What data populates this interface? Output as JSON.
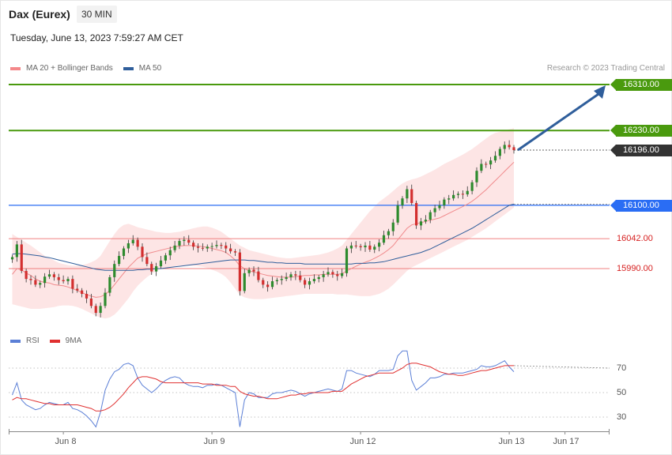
{
  "header": {
    "title": "Dax (Eurex)",
    "interval": "30 MIN",
    "timestamp": "Tuesday, June 13, 2023 7:59:27 AM CET"
  },
  "legend_price": [
    {
      "label": "MA 20 + Bollinger Bands",
      "color": "#f4888a"
    },
    {
      "label": "MA 50",
      "color": "#2f5e9b"
    }
  ],
  "credit": "Research © 2023 Trading Central",
  "legend_rsi": [
    {
      "label": "RSI",
      "color": "#5b7fd6"
    },
    {
      "label": "9MA",
      "color": "#e03030"
    }
  ],
  "colors": {
    "up_candle": "#2e8b2e",
    "down_candle": "#d32f2f",
    "resistance": "#4a9a0e",
    "pivot": "#2a6df4",
    "support": "#f08080",
    "last_price": "#333333",
    "forecast_arrow": "#2f5e9b",
    "bollinger_fill": "#fde0e0"
  },
  "chart_data": {
    "type": "candlestick",
    "title": "Dax (Eurex)",
    "interval": "30 MIN",
    "y_range": [
      15880,
      16330
    ],
    "price_levels": [
      {
        "value": 16310.0,
        "label": "16310.00",
        "kind": "resistance"
      },
      {
        "value": 16230.0,
        "label": "16230.00",
        "kind": "resistance"
      },
      {
        "value": 16196.0,
        "label": "16196.00",
        "kind": "last"
      },
      {
        "value": 16100.0,
        "label": "16100.00",
        "kind": "pivot"
      },
      {
        "value": 16042.0,
        "label": "16042.00",
        "kind": "support"
      },
      {
        "value": 15990.0,
        "label": "15990.00",
        "kind": "support"
      }
    ],
    "x_labels": [
      {
        "label": "Jun 8",
        "index": 11
      },
      {
        "label": "Jun 9",
        "index": 43
      },
      {
        "label": "Jun 12",
        "index": 75
      },
      {
        "label": "Jun 13",
        "index": 107
      },
      {
        "label": "Jun 17",
        "index": 119
      }
    ],
    "closes": [
      16010,
      16032,
      15986,
      15972,
      15970,
      15962,
      15965,
      15976,
      15980,
      15975,
      15970,
      15968,
      15972,
      15955,
      15952,
      15946,
      15938,
      15925,
      15913,
      15925,
      15948,
      15975,
      15998,
      16012,
      16025,
      16034,
      16040,
      16028,
      16010,
      15998,
      15985,
      15994,
      16004,
      16013,
      16022,
      16030,
      16038,
      16040,
      16035,
      16028,
      16026,
      16025,
      16028,
      16029,
      16031,
      16030,
      16025,
      16020,
      16018,
      15951,
      15982,
      15988,
      15985,
      15970,
      15962,
      15958,
      15968,
      15970,
      15972,
      15975,
      15980,
      15978,
      15970,
      15962,
      15968,
      15972,
      15975,
      15980,
      15984,
      15980,
      15977,
      15982,
      16025,
      16030,
      16029,
      16027,
      16030,
      16023,
      16028,
      16035,
      16048,
      16055,
      16070,
      16100,
      16112,
      16128,
      16104,
      16065,
      16072,
      16075,
      16088,
      16095,
      16100,
      16110,
      16112,
      16118,
      16120,
      16119,
      16125,
      16140,
      16160,
      16172,
      16171,
      16178,
      16186,
      16198,
      16205,
      16201,
      16196
    ],
    "ma20": [
      15980,
      15990,
      15988,
      15982,
      15978,
      15972,
      15968,
      15966,
      15965,
      15962,
      15961,
      15960,
      15958,
      15955,
      15952,
      15948,
      15945,
      15942,
      15940,
      15941,
      15945,
      15952,
      15962,
      15972,
      15982,
      15992,
      16000,
      16008,
      16012,
      16016,
      16018,
      16020,
      16022,
      16024,
      16026,
      16028,
      16029,
      16030,
      16030,
      16030,
      16029,
      16028,
      16027,
      16025,
      16023,
      16021,
      16018,
      16012,
      16005,
      15995,
      15990,
      15986,
      15984,
      15982,
      15980,
      15978,
      15977,
      15976,
      15975,
      15975,
      15975,
      15976,
      15977,
      15978,
      15978,
      15979,
      15979,
      15980,
      15980,
      15980,
      15980,
      15981,
      15986,
      15990,
      15994,
      15998,
      16001,
      16004,
      16008,
      16012,
      16017,
      16023,
      16030,
      16040,
      16050,
      16060,
      16066,
      16068,
      16070,
      16072,
      16074,
      16076,
      16078,
      16082,
      16086,
      16090,
      16094,
      16098,
      16102,
      16107,
      16113,
      16120,
      16127,
      16135,
      16143,
      16151,
      16159,
      16167,
      16175
    ],
    "bb_upper": [
      16050,
      16045,
      16040,
      16035,
      16030,
      16024,
      16018,
      16012,
      16008,
      16004,
      16000,
      15998,
      15996,
      15995,
      15995,
      15996,
      15998,
      16001,
      16005,
      16012,
      16025,
      16038,
      16050,
      16060,
      16066,
      16068,
      16065,
      16062,
      16060,
      16058,
      16056,
      16054,
      16053,
      16052,
      16052,
      16053,
      16054,
      16056,
      16058,
      16060,
      16062,
      16063,
      16063,
      16061,
      16058,
      16054,
      16048,
      16042,
      16036,
      16030,
      16026,
      16022,
      16020,
      16018,
      16016,
      16014,
      16012,
      16010,
      16009,
      16008,
      16008,
      16009,
      16010,
      16011,
      16012,
      16013,
      16014,
      16016,
      16018,
      16021,
      16025,
      16030,
      16040,
      16050,
      16060,
      16070,
      16080,
      16090,
      16098,
      16106,
      16112,
      16118,
      16125,
      16132,
      16138,
      16142,
      16145,
      16147,
      16150,
      16154,
      16158,
      16162,
      16167,
      16172,
      16176,
      16180,
      16184,
      16188,
      16193,
      16198,
      16204,
      16210,
      16216,
      16222,
      16226,
      16228,
      16230,
      16232,
      16234
    ],
    "bb_lower": [
      15928,
      15926,
      15924,
      15922,
      15920,
      15920,
      15920,
      15921,
      15922,
      15923,
      15925,
      15926,
      15926,
      15925,
      15923,
      15920,
      15916,
      15912,
      15908,
      15905,
      15903,
      15905,
      15910,
      15918,
      15928,
      15938,
      15950,
      15960,
      15968,
      15975,
      15981,
      15986,
      15989,
      15991,
      15993,
      15994,
      15995,
      15995,
      15995,
      15995,
      15994,
      15993,
      15991,
      15988,
      15985,
      15981,
      15975,
      15966,
      15955,
      15944,
      15940,
      15938,
      15937,
      15937,
      15937,
      15938,
      15939,
      15940,
      15941,
      15942,
      15943,
      15944,
      15945,
      15946,
      15946,
      15946,
      15946,
      15946,
      15946,
      15946,
      15945,
      15945,
      15945,
      15944,
      15943,
      15942,
      15942,
      15942,
      15944,
      15946,
      15950,
      15955,
      15962,
      15970,
      15978,
      15986,
      15992,
      15996,
      16000,
      16004,
      16008,
      16012,
      16016,
      16020,
      16024,
      16028,
      16032,
      16036,
      16040,
      16045,
      16050,
      16055,
      16060,
      16066,
      16072,
      16078,
      16084,
      16090,
      16096
    ],
    "ma50": [
      16015,
      16016,
      16016,
      16015,
      16014,
      16013,
      16012,
      16010,
      16009,
      16007,
      16005,
      16003,
      16001,
      15999,
      15997,
      15995,
      15993,
      15991,
      15989,
      15988,
      15987,
      15987,
      15987,
      15987,
      15987,
      15987,
      15987,
      15988,
      15988,
      15989,
      15989,
      15990,
      15990,
      15991,
      15992,
      15993,
      15994,
      15995,
      15996,
      15997,
      15998,
      15999,
      16000,
      16001,
      16002,
      16003,
      16004,
      16005,
      16005,
      16005,
      16005,
      16004,
      16004,
      16003,
      16002,
      16001,
      16001,
      16000,
      16000,
      15999,
      15999,
      15999,
      15999,
      15998,
      15998,
      15998,
      15998,
      15998,
      15998,
      15998,
      15998,
      15998,
      15998,
      15998,
      15999,
      15999,
      15999,
      16000,
      16000,
      16001,
      16002,
      16004,
      16006,
      16008,
      16010,
      16012,
      16014,
      16016,
      16018,
      16021,
      16024,
      16028,
      16032,
      16036,
      16040,
      16044,
      16048,
      16052,
      16056,
      16060,
      16065,
      16070,
      16075,
      16080,
      16085,
      16090,
      16095,
      16100,
      16102
    ],
    "rsi": [
      48,
      58,
      44,
      40,
      38,
      36,
      37,
      40,
      42,
      41,
      40,
      40,
      42,
      37,
      36,
      34,
      31,
      27,
      22,
      34,
      52,
      61,
      67,
      69,
      73,
      74,
      72,
      62,
      56,
      53,
      50,
      53,
      57,
      60,
      62,
      63,
      62,
      58,
      56,
      55,
      55,
      54,
      56,
      56,
      57,
      56,
      54,
      52,
      50,
      22,
      44,
      50,
      49,
      46,
      46,
      46,
      49,
      50,
      50,
      51,
      52,
      51,
      49,
      47,
      49,
      50,
      51,
      52,
      53,
      52,
      51,
      53,
      68,
      68,
      66,
      65,
      64,
      63,
      65,
      68,
      68,
      68,
      69,
      80,
      84,
      84,
      60,
      52,
      55,
      58,
      62,
      62,
      63,
      65,
      65,
      66,
      66,
      66,
      67,
      68,
      69,
      72,
      71,
      71,
      72,
      74,
      76,
      71,
      67
    ],
    "rsi_ma": [
      44,
      46,
      45,
      45,
      44,
      43,
      42,
      41,
      41,
      40,
      40,
      40,
      40,
      40,
      40,
      39,
      38,
      37,
      35,
      35,
      36,
      38,
      41,
      45,
      49,
      54,
      58,
      62,
      63,
      63,
      62,
      61,
      59,
      58,
      58,
      58,
      58,
      58,
      58,
      58,
      58,
      57,
      57,
      57,
      56,
      56,
      56,
      55,
      55,
      51,
      49,
      48,
      47,
      47,
      46,
      45,
      45,
      45,
      46,
      47,
      48,
      48,
      49,
      49,
      50,
      50,
      50,
      50,
      50,
      51,
      51,
      51,
      54,
      57,
      59,
      61,
      63,
      64,
      65,
      66,
      66,
      66,
      66,
      68,
      70,
      73,
      74,
      74,
      73,
      72,
      71,
      69,
      67,
      66,
      65,
      65,
      64,
      64,
      65,
      66,
      67,
      68,
      68,
      69,
      70,
      71,
      72,
      72,
      72
    ],
    "rsi_levels": [
      70,
      50,
      30
    ],
    "forecast_target": 16310.0
  }
}
